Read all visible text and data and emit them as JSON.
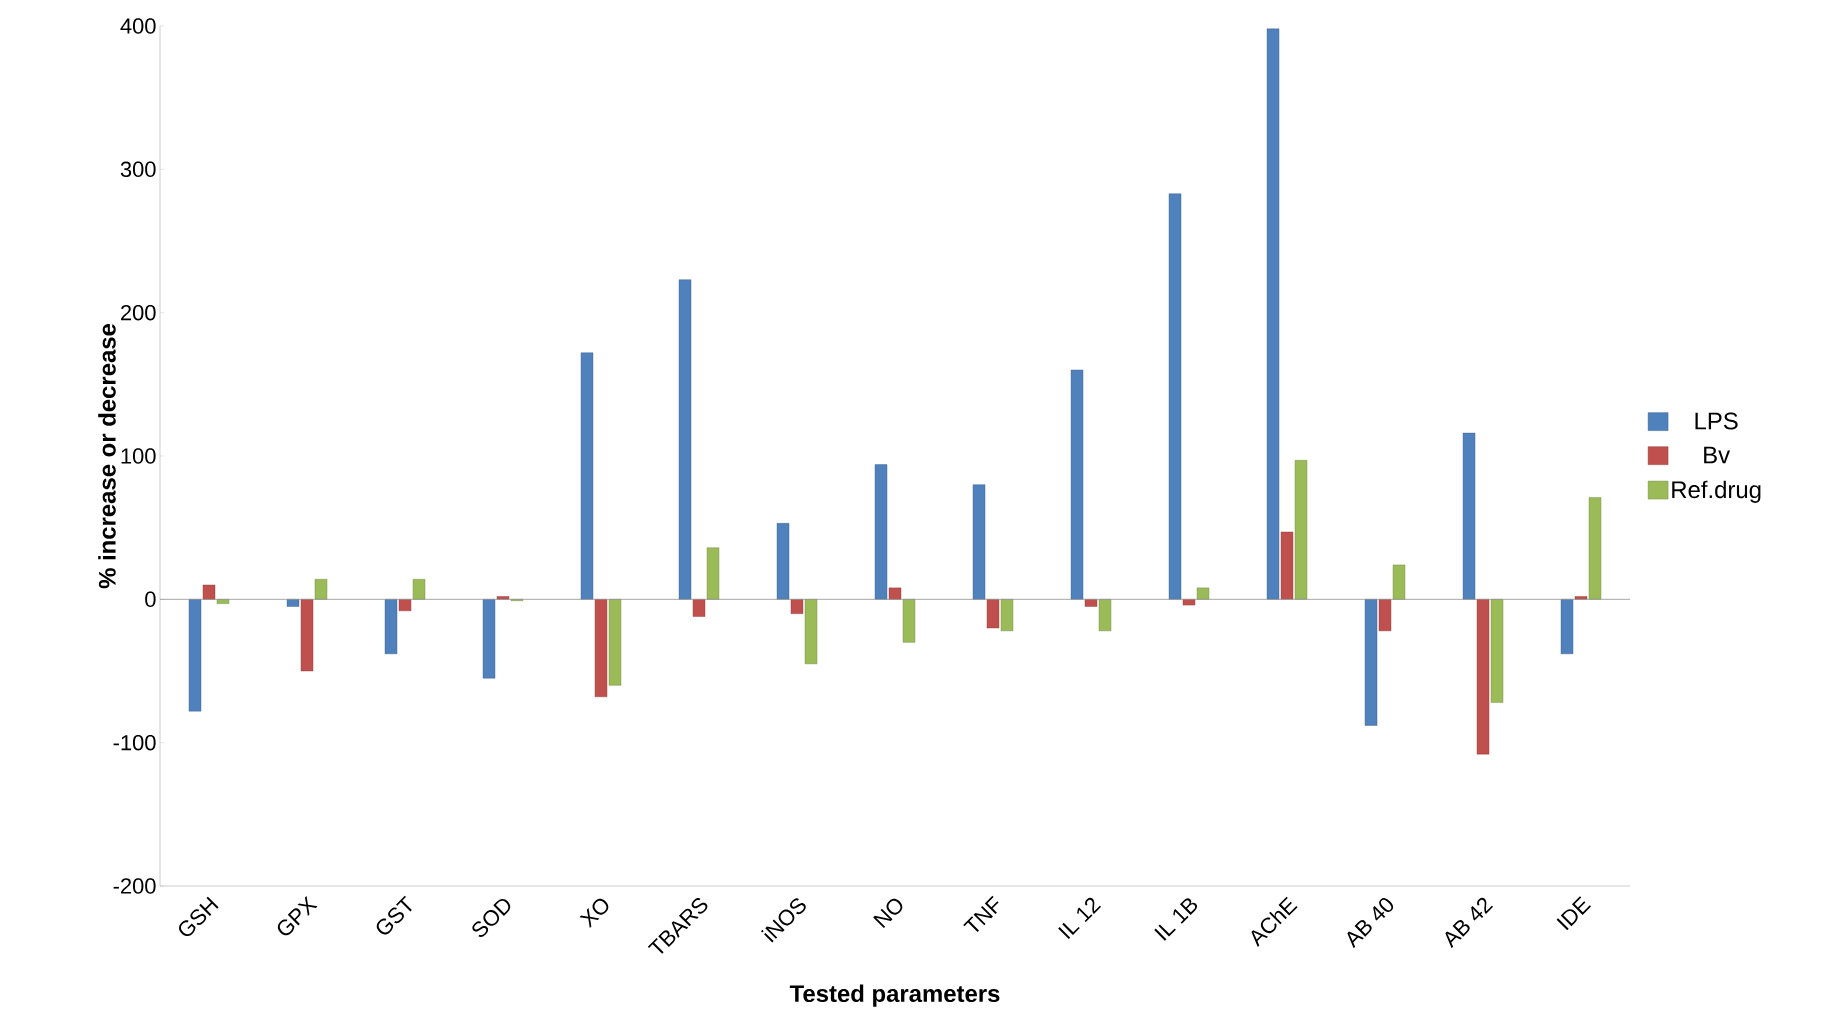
{
  "chart_data": {
    "type": "bar",
    "xlabel": "Tested parameters",
    "ylabel": "% increase or decrease",
    "categories": [
      "GSH",
      "GPX",
      "GST",
      "SOD",
      "XO",
      "TBARS",
      "iNOS",
      "NO",
      "TNF",
      "IL 12",
      "IL 1B",
      "AChE",
      "AB 40",
      "AB 42",
      "IDE"
    ],
    "series": [
      {
        "name": "LPS",
        "color": "#4f81bd",
        "values": [
          -78,
          -5,
          -38,
          -55,
          172,
          223,
          53,
          94,
          80,
          160,
          283,
          398,
          -88,
          116,
          -38
        ]
      },
      {
        "name": "Bv",
        "color": "#c0504d",
        "values": [
          10,
          -50,
          -8,
          2,
          -68,
          -12,
          -10,
          8,
          -20,
          -5,
          -4,
          47,
          -22,
          -108,
          2
        ]
      },
      {
        "name": "Ref.drug",
        "color": "#9bbb59",
        "values": [
          -3,
          14,
          14,
          -1,
          -60,
          36,
          -45,
          -30,
          -22,
          -22,
          8,
          97,
          24,
          -72,
          71
        ]
      }
    ],
    "ylim": [
      -200,
      400
    ],
    "yticks": [
      -200,
      -100,
      0,
      100,
      200,
      300,
      400
    ],
    "ref_lines": [
      {
        "axis": "y",
        "value": 0,
        "color": "#909090"
      }
    ],
    "legend": "right"
  }
}
